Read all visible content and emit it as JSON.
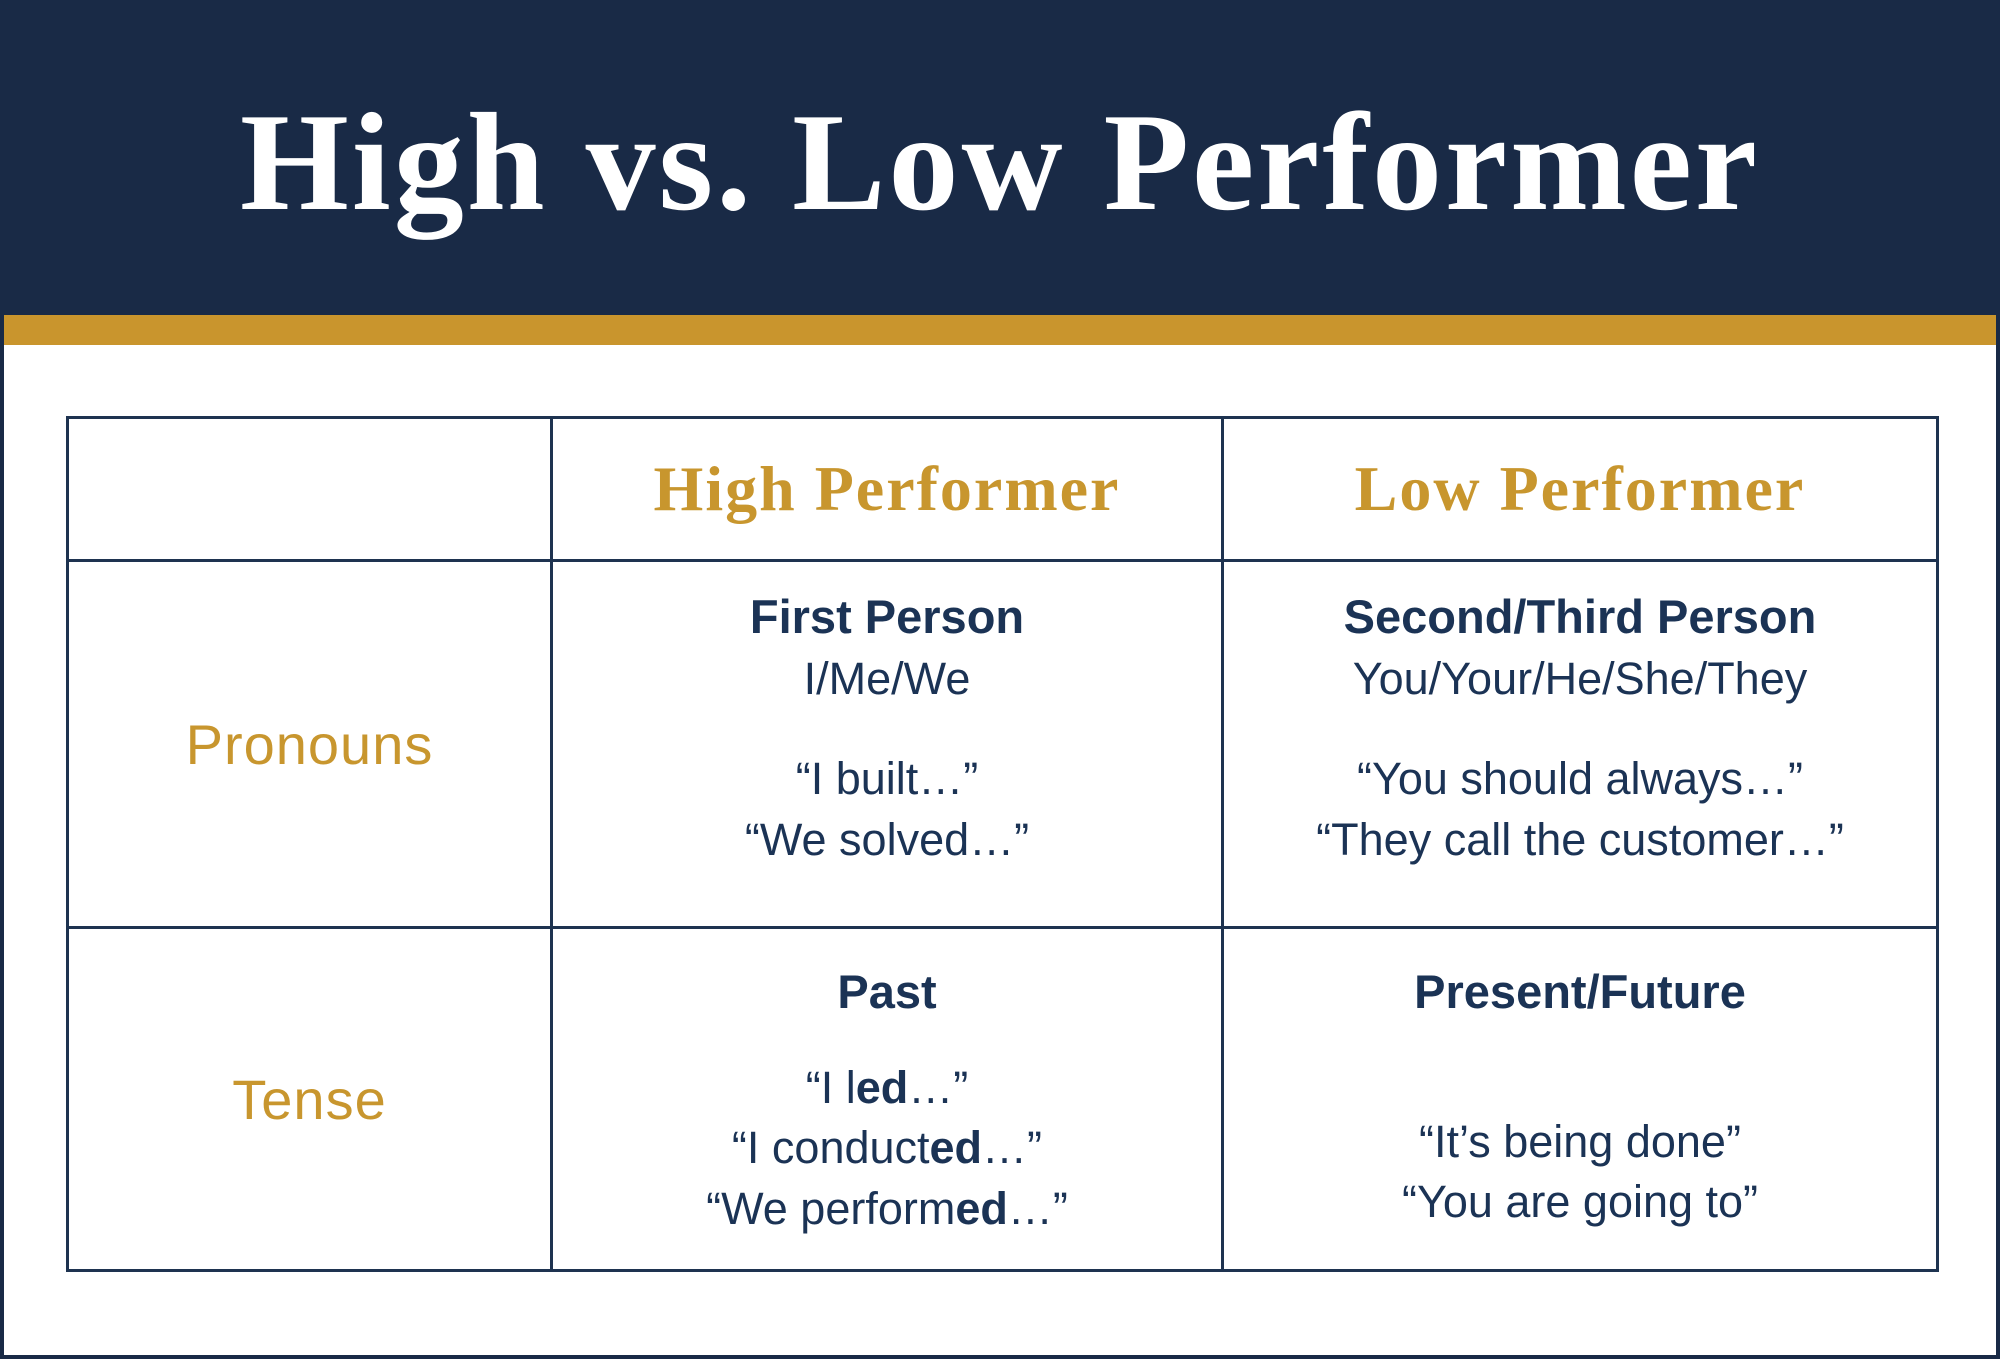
{
  "colors": {
    "banner_navy": "#192a46",
    "gold": "#c9952d",
    "gold_text": "#c8962e",
    "text_navy": "#1b3355",
    "table_border": "#1e3350",
    "background": "#ffffff"
  },
  "header": {
    "title": "High vs. Low Performer"
  },
  "table": {
    "columns": [
      "",
      "High Performer",
      "Low Performer"
    ],
    "rows": [
      {
        "label": "Pronouns",
        "cells": {
          "high": {
            "heading": "First Person",
            "subheading": "I/Me/We",
            "quotes": [
              [
                {
                  "t": "“I built…”"
                }
              ],
              [
                {
                  "t": "“We solved…”"
                }
              ]
            ]
          },
          "low": {
            "heading": "Second/Third Person",
            "subheading": "You/Your/He/She/They",
            "quotes": [
              [
                {
                  "t": "“You should always…”"
                }
              ],
              [
                {
                  "t": "“They call the customer…”"
                }
              ]
            ]
          }
        }
      },
      {
        "label": "Tense",
        "cells": {
          "high": {
            "heading": "Past",
            "quotes": [
              [
                {
                  "t": "“I l"
                },
                {
                  "t": "ed",
                  "b": true
                },
                {
                  "t": "…”"
                }
              ],
              [
                {
                  "t": "“I conduct"
                },
                {
                  "t": "ed",
                  "b": true
                },
                {
                  "t": "…”"
                }
              ],
              [
                {
                  "t": "“We perform"
                },
                {
                  "t": "ed",
                  "b": true
                },
                {
                  "t": "…”"
                }
              ]
            ]
          },
          "low": {
            "heading": "Present/Future",
            "quotes": [
              [
                {
                  "t": "“It’s being done”"
                }
              ],
              [
                {
                  "t": "“You are going to”"
                }
              ]
            ]
          }
        }
      }
    ]
  }
}
